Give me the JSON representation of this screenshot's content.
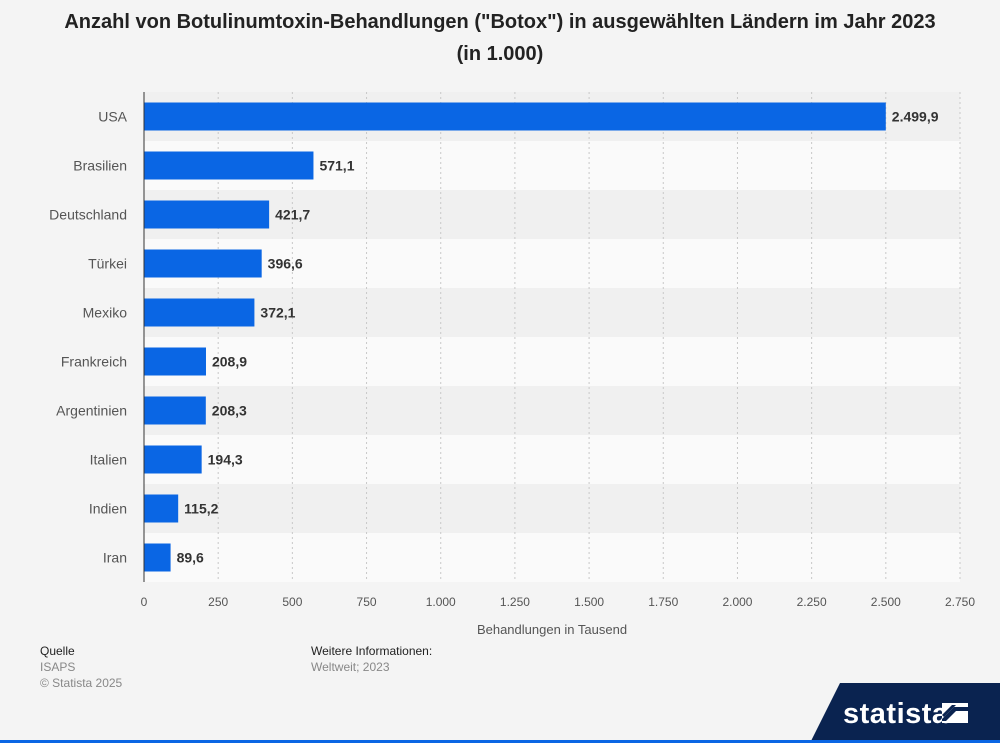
{
  "title": "Anzahl von Botulinumtoxin-Behandlungen (\"Botox\") in ausgewählten Ländern im Jahr 2023 (in 1.000)",
  "chart_data": {
    "type": "bar",
    "orientation": "horizontal",
    "categories": [
      "USA",
      "Brasilien",
      "Deutschland",
      "Türkei",
      "Mexiko",
      "Frankreich",
      "Argentinien",
      "Italien",
      "Indien",
      "Iran"
    ],
    "values": [
      2499.9,
      571.1,
      421.7,
      396.6,
      372.1,
      208.9,
      208.3,
      194.3,
      115.2,
      89.6
    ],
    "value_labels": [
      "2.499,9",
      "571,1",
      "421,7",
      "396,6",
      "372,1",
      "208,9",
      "208,3",
      "194,3",
      "115,2",
      "89,6"
    ],
    "xlabel": "Behandlungen in Tausend",
    "xlim": [
      0,
      2750
    ],
    "xticks": [
      0,
      250,
      500,
      750,
      1000,
      1250,
      1500,
      1750,
      2000,
      2250,
      2500,
      2750
    ],
    "xtick_labels": [
      "0",
      "250",
      "500",
      "750",
      "1.000",
      "1.250",
      "1.500",
      "1.750",
      "2.000",
      "2.250",
      "2.500",
      "2.750"
    ],
    "grid": true,
    "bar_color": "#0a66e4"
  },
  "footer": {
    "source_heading": "Quelle",
    "source": "ISAPS",
    "copyright": "© Statista 2025",
    "info_heading": "Weitere Informationen:",
    "info": "Weltweit; 2023"
  },
  "brand": {
    "name": "statista",
    "color": "#0a2350"
  }
}
